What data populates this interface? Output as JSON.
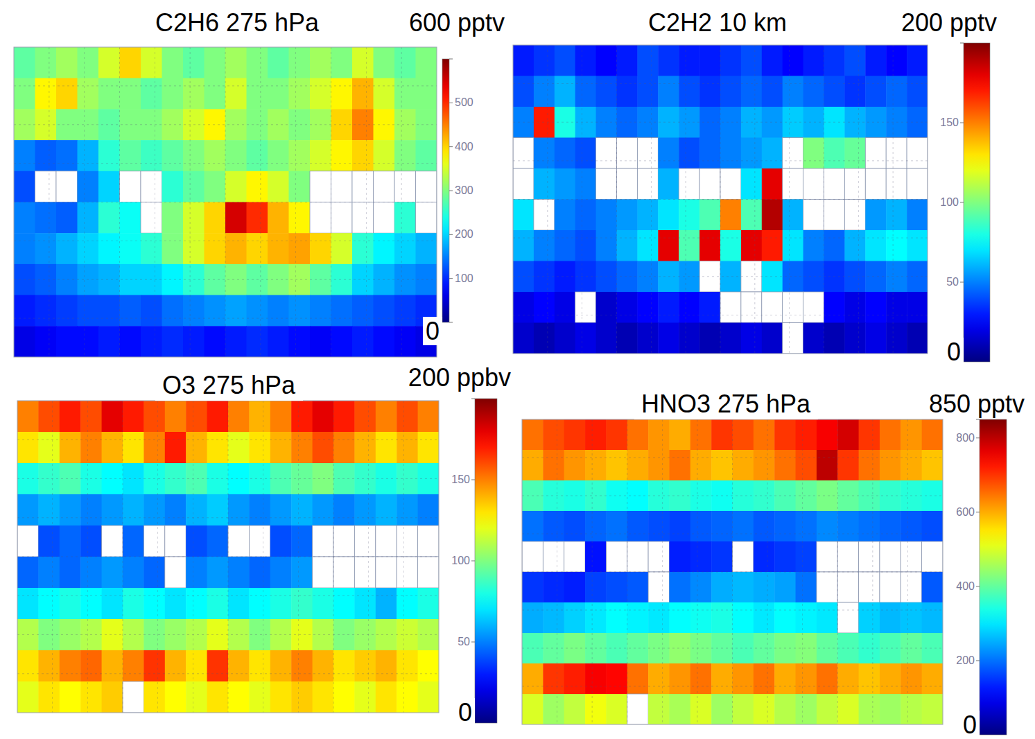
{
  "chart_data": [
    {
      "type": "heatmap",
      "title": "C2H6 275 hPa",
      "clim": [
        0,
        600
      ],
      "cbar_ticks": [
        0,
        100,
        200,
        300,
        400,
        500,
        {
          "value": 600,
          "label": "600 pptv"
        }
      ],
      "cells": [
        [
          280,
          300,
          320,
          300,
          350,
          400,
          350,
          300,
          280,
          300,
          320,
          300,
          280,
          300,
          320,
          300,
          350,
          300,
          280,
          300
        ],
        [
          300,
          380,
          400,
          320,
          300,
          300,
          280,
          300,
          320,
          300,
          350,
          300,
          300,
          320,
          350,
          380,
          420,
          350,
          300,
          300
        ],
        [
          320,
          350,
          300,
          300,
          280,
          300,
          300,
          320,
          350,
          380,
          320,
          300,
          320,
          300,
          320,
          400,
          450,
          380,
          320,
          300
        ],
        [
          150,
          130,
          140,
          180,
          250,
          280,
          260,
          280,
          300,
          320,
          300,
          280,
          300,
          320,
          350,
          380,
          400,
          350,
          300,
          280
        ],
        [
          120,
          null,
          null,
          150,
          200,
          null,
          null,
          250,
          280,
          300,
          350,
          380,
          350,
          300,
          null,
          null,
          null,
          null,
          null,
          null
        ],
        [
          150,
          140,
          130,
          180,
          250,
          230,
          null,
          300,
          350,
          400,
          550,
          500,
          420,
          380,
          null,
          null,
          null,
          null,
          250,
          null
        ],
        [
          150,
          160,
          180,
          200,
          220,
          230,
          250,
          300,
          350,
          400,
          420,
          400,
          420,
          430,
          400,
          350,
          250,
          220,
          200,
          180
        ],
        [
          120,
          130,
          150,
          170,
          180,
          200,
          200,
          220,
          250,
          280,
          300,
          280,
          300,
          320,
          280,
          250,
          200,
          180,
          160,
          150
        ],
        [
          90,
          100,
          110,
          120,
          120,
          130,
          120,
          140,
          150,
          160,
          170,
          160,
          150,
          160,
          150,
          140,
          130,
          120,
          110,
          100
        ],
        [
          60,
          70,
          80,
          80,
          90,
          80,
          90,
          100,
          90,
          80,
          90,
          100,
          90,
          80,
          70,
          80,
          90,
          80,
          70,
          60
        ]
      ]
    },
    {
      "type": "heatmap",
      "title": "C2H2 10 km",
      "clim": [
        0,
        200
      ],
      "cbar_ticks": [
        0,
        50,
        100,
        150,
        {
          "value": 200,
          "label": "200 pptv"
        }
      ],
      "cells": [
        [
          30,
          35,
          40,
          30,
          25,
          30,
          40,
          35,
          30,
          30,
          35,
          40,
          30,
          25,
          30,
          35,
          40,
          30,
          25,
          30
        ],
        [
          40,
          50,
          60,
          45,
          40,
          35,
          40,
          50,
          40,
          35,
          40,
          45,
          40,
          50,
          45,
          40,
          35,
          40,
          45,
          40
        ],
        [
          50,
          170,
          80,
          60,
          50,
          45,
          50,
          60,
          55,
          45,
          50,
          60,
          55,
          65,
          60,
          70,
          60,
          55,
          50,
          45
        ],
        [
          null,
          50,
          45,
          40,
          null,
          null,
          null,
          50,
          40,
          45,
          50,
          55,
          60,
          null,
          100,
          90,
          95,
          null,
          null,
          null
        ],
        [
          null,
          60,
          55,
          50,
          null,
          null,
          null,
          60,
          null,
          null,
          null,
          70,
          180,
          null,
          null,
          null,
          null,
          null,
          null,
          null
        ],
        [
          70,
          null,
          50,
          45,
          50,
          55,
          60,
          70,
          80,
          90,
          150,
          90,
          190,
          60,
          null,
          null,
          null,
          55,
          60,
          50
        ],
        [
          60,
          50,
          45,
          40,
          50,
          60,
          70,
          180,
          90,
          180,
          80,
          180,
          170,
          70,
          50,
          45,
          60,
          70,
          75,
          70
        ],
        [
          40,
          35,
          30,
          35,
          40,
          45,
          50,
          60,
          55,
          null,
          60,
          null,
          70,
          45,
          40,
          35,
          40,
          45,
          50,
          45
        ],
        [
          20,
          25,
          20,
          null,
          15,
          20,
          25,
          30,
          25,
          30,
          null,
          null,
          null,
          null,
          null,
          25,
          20,
          25,
          20,
          20
        ],
        [
          15,
          10,
          15,
          20,
          15,
          10,
          15,
          20,
          15,
          10,
          15,
          20,
          15,
          null,
          15,
          10,
          15,
          20,
          15,
          10
        ]
      ]
    },
    {
      "type": "heatmap",
      "title": "O3 275 hPa",
      "clim": [
        0,
        200
      ],
      "cbar_ticks": [
        0,
        50,
        100,
        150,
        {
          "value": 200,
          "label": "200 ppbv"
        }
      ],
      "cells": [
        [
          150,
          160,
          170,
          160,
          180,
          170,
          160,
          150,
          160,
          170,
          150,
          140,
          150,
          170,
          180,
          170,
          160,
          150,
          160,
          150
        ],
        [
          130,
          120,
          140,
          150,
          140,
          130,
          150,
          170,
          140,
          130,
          120,
          130,
          140,
          150,
          160,
          150,
          140,
          130,
          140,
          130
        ],
        [
          80,
          85,
          90,
          80,
          75,
          70,
          80,
          85,
          90,
          80,
          75,
          80,
          90,
          95,
          100,
          90,
          85,
          80,
          85,
          80
        ],
        [
          55,
          60,
          55,
          50,
          55,
          60,
          55,
          50,
          60,
          65,
          55,
          50,
          55,
          60,
          55,
          50,
          55,
          60,
          55,
          50
        ],
        [
          null,
          40,
          45,
          40,
          null,
          45,
          null,
          null,
          40,
          45,
          null,
          null,
          40,
          45,
          null,
          null,
          null,
          null,
          null,
          null
        ],
        [
          45,
          50,
          45,
          50,
          55,
          50,
          45,
          null,
          50,
          55,
          50,
          45,
          50,
          55,
          null,
          null,
          null,
          null,
          null,
          null
        ],
        [
          70,
          75,
          80,
          75,
          70,
          80,
          75,
          70,
          75,
          80,
          70,
          75,
          80,
          85,
          80,
          75,
          70,
          60,
          75,
          80
        ],
        [
          110,
          100,
          105,
          110,
          120,
          110,
          100,
          105,
          110,
          120,
          110,
          100,
          110,
          120,
          110,
          100,
          105,
          110,
          115,
          110
        ],
        [
          130,
          140,
          150,
          155,
          140,
          150,
          165,
          140,
          130,
          165,
          140,
          130,
          140,
          150,
          140,
          130,
          135,
          140,
          130,
          125
        ],
        [
          120,
          130,
          125,
          130,
          135,
          null,
          130,
          125,
          120,
          130,
          125,
          120,
          130,
          135,
          130,
          125,
          120,
          130,
          125,
          120
        ]
      ]
    },
    {
      "type": "heatmap",
      "title": "HNO3 275 hPa",
      "clim": [
        0,
        850
      ],
      "cbar_ticks": [
        0,
        200,
        400,
        600,
        800,
        {
          "value": 850,
          "label": "850 pptv"
        }
      ],
      "cells": [
        [
          650,
          680,
          700,
          720,
          700,
          650,
          620,
          600,
          650,
          700,
          680,
          650,
          700,
          720,
          750,
          780,
          700,
          650,
          620,
          650
        ],
        [
          600,
          650,
          620,
          600,
          580,
          600,
          620,
          650,
          600,
          580,
          600,
          620,
          650,
          680,
          800,
          700,
          650,
          620,
          600,
          580
        ],
        [
          380,
          350,
          340,
          360,
          330,
          320,
          350,
          360,
          340,
          330,
          350,
          360,
          380,
          400,
          420,
          400,
          380,
          360,
          350,
          340
        ],
        [
          200,
          180,
          170,
          190,
          200,
          180,
          170,
          160,
          180,
          190,
          200,
          180,
          190,
          200,
          220,
          210,
          200,
          190,
          180,
          170
        ],
        [
          null,
          null,
          null,
          120,
          null,
          null,
          null,
          130,
          140,
          150,
          null,
          140,
          150,
          160,
          null,
          null,
          null,
          null,
          null,
          null
        ],
        [
          150,
          140,
          130,
          160,
          170,
          180,
          null,
          200,
          220,
          250,
          260,
          250,
          240,
          200,
          null,
          null,
          null,
          null,
          null,
          180
        ],
        [
          250,
          260,
          280,
          300,
          320,
          310,
          300,
          320,
          330,
          340,
          320,
          300,
          320,
          310,
          300,
          null,
          280,
          260,
          270,
          260
        ],
        [
          380,
          400,
          420,
          400,
          380,
          400,
          420,
          440,
          420,
          400,
          380,
          400,
          420,
          430,
          400,
          380,
          360,
          380,
          400,
          380
        ],
        [
          600,
          700,
          720,
          750,
          740,
          650,
          600,
          620,
          650,
          600,
          620,
          650,
          600,
          620,
          650,
          600,
          580,
          600,
          620,
          600
        ],
        [
          500,
          450,
          480,
          520,
          500,
          null,
          480,
          460,
          500,
          450,
          480,
          500,
          470,
          450,
          480,
          500,
          460,
          450,
          470,
          480
        ]
      ]
    }
  ]
}
